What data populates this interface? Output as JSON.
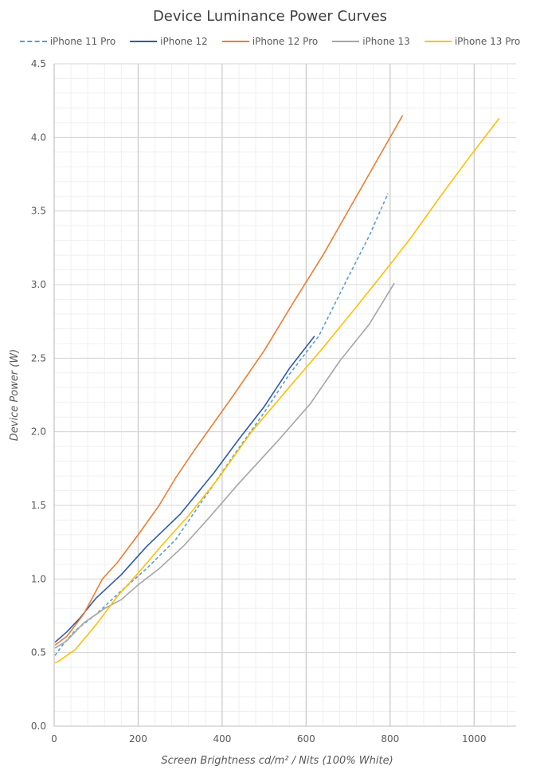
{
  "chart_data": {
    "type": "line",
    "title": "Device Luminance Power Curves",
    "xlabel": "Screen Brightness cd/m² / Nits (100% White)",
    "ylabel": "Device Power (W)",
    "xlim": [
      0,
      1100
    ],
    "ylim": [
      0,
      4.5
    ],
    "xticks": [
      0,
      200,
      400,
      600,
      800,
      1000
    ],
    "yticks": [
      0.0,
      0.5,
      1.0,
      1.5,
      2.0,
      2.5,
      3.0,
      3.5,
      4.0,
      4.5
    ],
    "ytick_labels": [
      "0.0",
      "0.5",
      "1.0",
      "1.5",
      "2.0",
      "2.5",
      "3.0",
      "3.5",
      "4.0",
      "4.5"
    ],
    "grid": true,
    "legend_position": "top",
    "series": [
      {
        "name": "iPhone 11 Pro",
        "color": "#5b9bd5",
        "dashed": true,
        "points": [
          [
            2,
            0.48
          ],
          [
            20,
            0.55
          ],
          [
            50,
            0.65
          ],
          [
            100,
            0.76
          ],
          [
            160,
            0.92
          ],
          [
            220,
            1.07
          ],
          [
            290,
            1.27
          ],
          [
            360,
            1.56
          ],
          [
            430,
            1.85
          ],
          [
            500,
            2.13
          ],
          [
            560,
            2.39
          ],
          [
            630,
            2.65
          ],
          [
            700,
            3.05
          ],
          [
            750,
            3.33
          ],
          [
            795,
            3.62
          ]
        ]
      },
      {
        "name": "iPhone 12",
        "color": "#2f5aaa",
        "dashed": false,
        "points": [
          [
            2,
            0.57
          ],
          [
            30,
            0.64
          ],
          [
            60,
            0.73
          ],
          [
            100,
            0.87
          ],
          [
            160,
            1.03
          ],
          [
            220,
            1.22
          ],
          [
            300,
            1.44
          ],
          [
            380,
            1.72
          ],
          [
            440,
            1.95
          ],
          [
            500,
            2.17
          ],
          [
            560,
            2.43
          ],
          [
            620,
            2.65
          ]
        ]
      },
      {
        "name": "iPhone 12 Pro",
        "color": "#ed7d31",
        "dashed": false,
        "points": [
          [
            2,
            0.55
          ],
          [
            30,
            0.61
          ],
          [
            70,
            0.76
          ],
          [
            115,
            1.0
          ],
          [
            150,
            1.11
          ],
          [
            200,
            1.3
          ],
          [
            250,
            1.5
          ],
          [
            290,
            1.69
          ],
          [
            340,
            1.9
          ],
          [
            420,
            2.22
          ],
          [
            500,
            2.55
          ],
          [
            570,
            2.88
          ],
          [
            640,
            3.2
          ],
          [
            710,
            3.55
          ],
          [
            770,
            3.85
          ],
          [
            830,
            4.15
          ]
        ]
      },
      {
        "name": "iPhone 13",
        "color": "#a5a5a5",
        "dashed": false,
        "points": [
          [
            2,
            0.53
          ],
          [
            30,
            0.58
          ],
          [
            70,
            0.7
          ],
          [
            120,
            0.8
          ],
          [
            160,
            0.86
          ],
          [
            200,
            0.96
          ],
          [
            250,
            1.07
          ],
          [
            310,
            1.23
          ],
          [
            370,
            1.42
          ],
          [
            440,
            1.65
          ],
          [
            530,
            1.93
          ],
          [
            610,
            2.19
          ],
          [
            680,
            2.48
          ],
          [
            750,
            2.73
          ],
          [
            810,
            3.01
          ]
        ]
      },
      {
        "name": "iPhone 13 Pro",
        "color": "#ffc000",
        "dashed": false,
        "points": [
          [
            2,
            0.43
          ],
          [
            10,
            0.44
          ],
          [
            50,
            0.52
          ],
          [
            100,
            0.69
          ],
          [
            150,
            0.88
          ],
          [
            200,
            1.04
          ],
          [
            260,
            1.24
          ],
          [
            320,
            1.43
          ],
          [
            390,
            1.68
          ],
          [
            470,
            2.0
          ],
          [
            550,
            2.27
          ],
          [
            640,
            2.57
          ],
          [
            720,
            2.85
          ],
          [
            790,
            3.1
          ],
          [
            850,
            3.32
          ],
          [
            920,
            3.6
          ],
          [
            990,
            3.87
          ],
          [
            1060,
            4.13
          ]
        ]
      }
    ]
  }
}
